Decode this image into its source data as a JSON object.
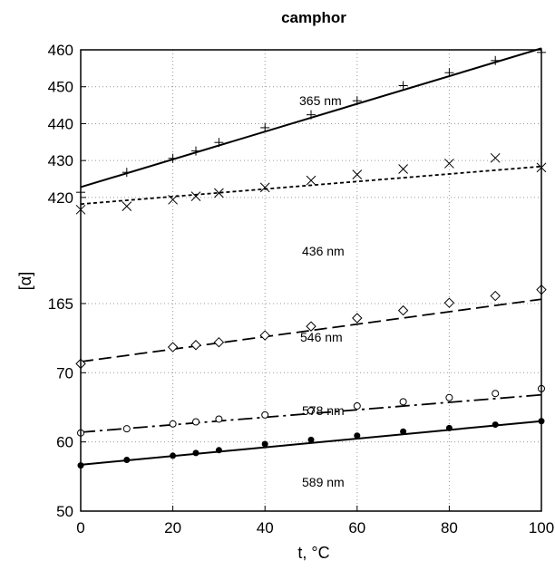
{
  "chart_data": {
    "type": "scatter",
    "title": "camphor",
    "xlabel": "t, °C",
    "ylabel": "[α]",
    "xlim": [
      0,
      100
    ],
    "x_ticks": [
      "0",
      "20",
      "40",
      "60",
      "80",
      "100"
    ],
    "y_tick_labels": [
      "50",
      "60",
      "70",
      "165",
      "420",
      "430",
      "440",
      "450",
      "460"
    ],
    "y_axis_note": "broken axis: lower labels 50, 60, 70, 165, upper labels 420 to 460",
    "grid": true,
    "series": [
      {
        "name": "365 nm",
        "marker": "plus",
        "line_style": "solid",
        "fit_line": {
          "x": [
            0,
            100
          ],
          "y": [
            422.8,
            460.4
          ]
        },
        "x": [
          0,
          10,
          20,
          25,
          30,
          40,
          50,
          60,
          70,
          80,
          90,
          100
        ],
        "y": [
          421.4,
          426.8,
          430.6,
          432.6,
          434.9,
          438.9,
          442.4,
          446.2,
          450.3,
          453.8,
          457.1,
          459.3
        ]
      },
      {
        "name": "436 nm",
        "marker": "x",
        "line_style": "dotted",
        "fit_line": {
          "x": [
            0,
            100
          ],
          "y": [
            418.2,
            428.4
          ]
        },
        "x": [
          0,
          10,
          20,
          25,
          30,
          40,
          50,
          60,
          70,
          80,
          90,
          100
        ],
        "y": [
          416.7,
          417.6,
          419.4,
          420.3,
          421.2,
          422.7,
          424.6,
          426.2,
          427.7,
          429.2,
          430.7,
          428.1
        ]
      },
      {
        "name": "546 nm",
        "marker": "diamond",
        "line_style": "long-dash",
        "fit_line": {
          "x": [
            0,
            100
          ],
          "y": [
            71.6,
            166.2
          ]
        },
        "x": [
          0,
          20,
          25,
          30,
          40,
          50,
          60,
          70,
          80,
          90,
          100
        ],
        "y": [
          71.3,
          73.7,
          74.0,
          74.4,
          75.4,
          76.7,
          77.9,
          79.0,
          80.1,
          81.1,
          82.0
        ]
      },
      {
        "name": "578 nm",
        "marker": "open-circle",
        "line_style": "dash-dot",
        "fit_line": {
          "x": [
            0,
            100
          ],
          "y": [
            61.4,
            66.8
          ]
        },
        "x": [
          0,
          10,
          20,
          25,
          30,
          40,
          50,
          60,
          70,
          80,
          90,
          100
        ],
        "y": [
          61.3,
          61.9,
          62.6,
          62.9,
          63.3,
          63.9,
          64.5,
          65.2,
          65.8,
          66.4,
          67.0,
          67.7
        ]
      },
      {
        "name": "589 nm",
        "marker": "filled-circle",
        "line_style": "solid",
        "fit_line": {
          "x": [
            0,
            100
          ],
          "y": [
            56.7,
            63.0
          ]
        },
        "x": [
          0,
          10,
          20,
          25,
          30,
          40,
          50,
          60,
          70,
          80,
          90,
          100
        ],
        "y": [
          56.6,
          57.4,
          58.0,
          58.4,
          58.8,
          59.7,
          60.3,
          60.9,
          61.5,
          62.0,
          62.5,
          63.0
        ]
      }
    ]
  }
}
